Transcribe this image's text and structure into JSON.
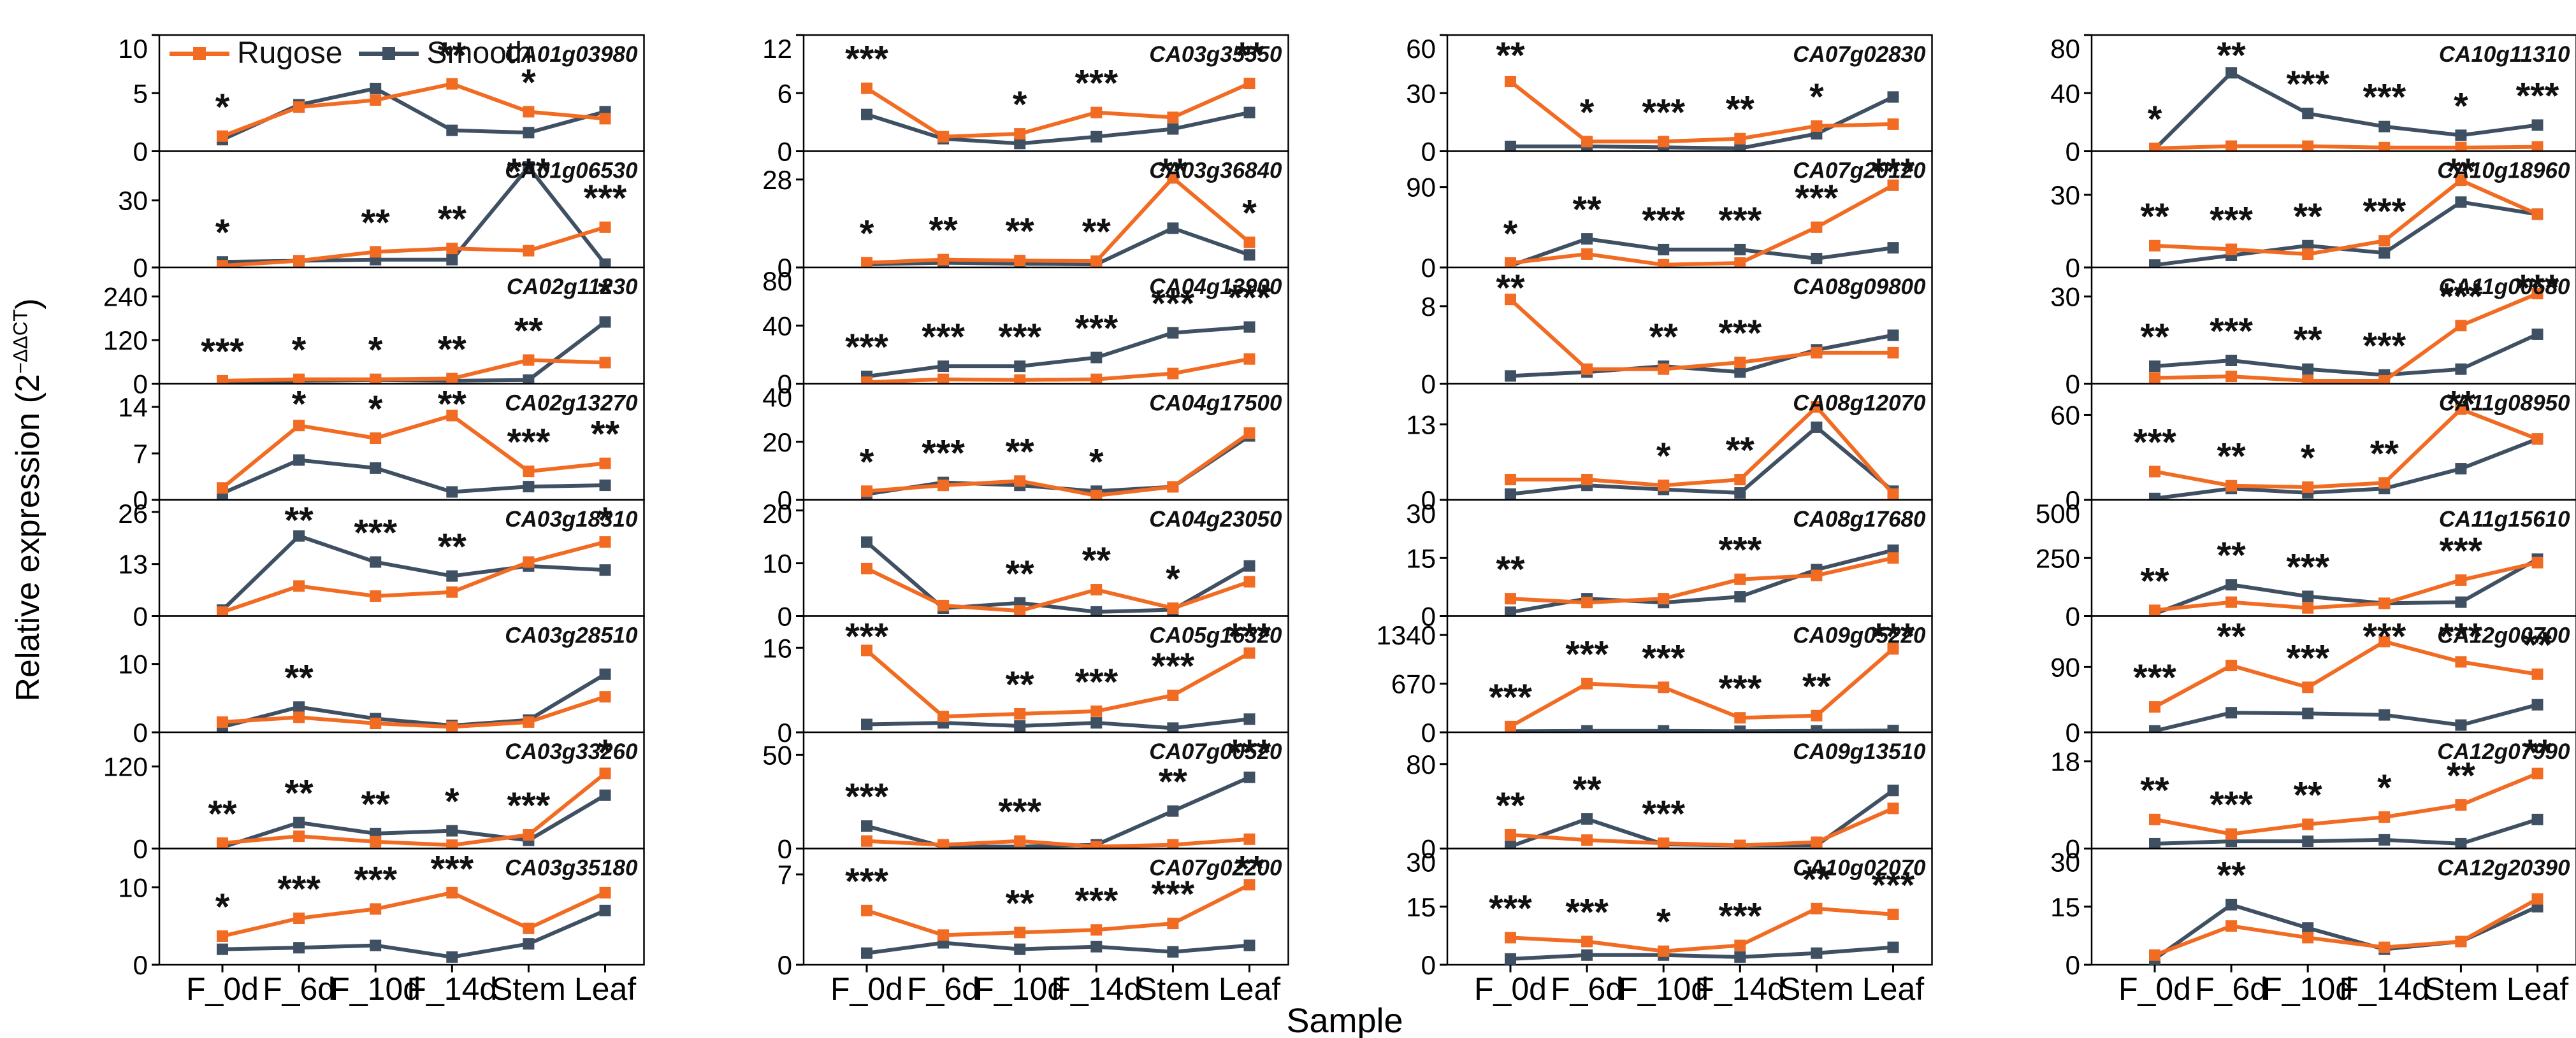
{
  "figure": {
    "y_axis_label_prefix": "Relative expression (2",
    "y_axis_label_sup": "−ΔΔCT",
    "y_axis_label_suffix": ")",
    "x_axis_label": "Sample",
    "legend": [
      {
        "label": "Rugose",
        "color": "#F16C22"
      },
      {
        "label": "Smooth",
        "color": "#3F5063"
      }
    ],
    "colors": {
      "rugose": "#F16C22",
      "smooth": "#3F5063"
    }
  },
  "chart_data": {
    "type": "line",
    "categories": [
      "F_0d",
      "F_6d",
      "F_10d",
      "F_14d",
      "Stem",
      "Leaf"
    ],
    "series_names": [
      "Rugose",
      "Smooth"
    ],
    "legend_position": "top-left-first-panel",
    "grid": false,
    "columns": [
      [
        {
          "gene": "CA01g03980",
          "yticks": [
            0,
            5,
            10
          ],
          "ymax": 10,
          "rugose": [
            1.3,
            3.8,
            4.4,
            5.8,
            3.4,
            2.8
          ],
          "smooth": [
            1.0,
            4.0,
            5.4,
            1.8,
            1.6,
            3.4
          ],
          "sig": [
            "*",
            "",
            "",
            "**",
            "*",
            ""
          ]
        },
        {
          "gene": "CA01g06530",
          "yticks": [
            0,
            30
          ],
          "ymax": 52,
          "rugose": [
            0.8,
            3,
            7,
            8.5,
            7.5,
            18
          ],
          "smooth": [
            2.5,
            3,
            3.5,
            3.5,
            45,
            1.5
          ],
          "sig": [
            "*",
            "",
            "**",
            "**",
            "***",
            "***"
          ]
        },
        {
          "gene": "CA02g11230",
          "yticks": [
            0,
            120,
            240
          ],
          "ymax": 320,
          "rugose": [
            8,
            12,
            12,
            14,
            65,
            58
          ],
          "smooth": [
            5,
            8,
            10,
            8,
            10,
            170
          ],
          "sig": [
            "***",
            "*",
            "*",
            "**",
            "**",
            "*"
          ]
        },
        {
          "gene": "CA02g13270",
          "yticks": [
            0,
            7,
            14
          ],
          "ymax": 17.5,
          "rugose": [
            1.8,
            11.2,
            9.3,
            12.7,
            4.3,
            5.5
          ],
          "smooth": [
            1.0,
            6.0,
            4.8,
            1.2,
            2.0,
            2.2
          ],
          "sig": [
            "",
            "*",
            "*",
            "**",
            "***",
            "**"
          ]
        },
        {
          "gene": "CA03g18310",
          "yticks": [
            0,
            13,
            26
          ],
          "ymax": 29,
          "rugose": [
            1.0,
            7.5,
            5.0,
            6.0,
            13.5,
            18.5
          ],
          "smooth": [
            1.5,
            20,
            13.5,
            10,
            12.5,
            11.5
          ],
          "sig": [
            "",
            "**",
            "***",
            "**",
            "",
            "*"
          ]
        },
        {
          "gene": "CA03g28510",
          "yticks": [
            0,
            10
          ],
          "ymax": 17,
          "rugose": [
            1.5,
            2.2,
            1.3,
            0.8,
            1.5,
            5.2
          ],
          "smooth": [
            0.8,
            3.7,
            2.0,
            1.0,
            1.8,
            8.5
          ],
          "sig": [
            "",
            "**",
            "",
            "",
            "",
            ""
          ]
        },
        {
          "gene": "CA03g33260",
          "yticks": [
            0,
            120
          ],
          "ymax": 170,
          "rugose": [
            8,
            18,
            10,
            5,
            20,
            110
          ],
          "smooth": [
            2,
            38,
            22,
            26,
            12,
            78
          ],
          "sig": [
            "**",
            "**",
            "**",
            "*",
            "***",
            "*"
          ]
        },
        {
          "gene": "CA03g35180",
          "yticks": [
            0,
            10
          ],
          "ymax": 15,
          "rugose": [
            3.7,
            6.0,
            7.2,
            9.3,
            4.7,
            9.3
          ],
          "smooth": [
            2.0,
            2.2,
            2.5,
            1.0,
            2.7,
            7.0
          ],
          "sig": [
            "*",
            "***",
            "***",
            "***",
            "",
            ""
          ]
        }
      ],
      [
        {
          "gene": "CA03g35550",
          "yticks": [
            0,
            6,
            12
          ],
          "ymax": 12,
          "rugose": [
            6.5,
            1.5,
            1.8,
            4.0,
            3.5,
            7.0
          ],
          "smooth": [
            3.8,
            1.3,
            0.8,
            1.5,
            2.3,
            4.0
          ],
          "sig": [
            "***",
            "",
            "*",
            "***",
            "",
            "**"
          ]
        },
        {
          "gene": "CA03g36840",
          "yticks": [
            0,
            28
          ],
          "ymax": 37,
          "rugose": [
            1.5,
            2.5,
            2.2,
            2.0,
            28.5,
            8.0
          ],
          "smooth": [
            1.0,
            1.5,
            1.2,
            1.0,
            12.5,
            4.0
          ],
          "sig": [
            "*",
            "**",
            "**",
            "**",
            "**",
            "*"
          ]
        },
        {
          "gene": "CA04g13900",
          "yticks": [
            0,
            40,
            80
          ],
          "ymax": 80,
          "rugose": [
            1,
            3,
            2.5,
            3,
            7,
            17
          ],
          "smooth": [
            5,
            12,
            12,
            18,
            35,
            39
          ],
          "sig": [
            "***",
            "***",
            "***",
            "***",
            "***",
            "***"
          ]
        },
        {
          "gene": "CA04g17500",
          "yticks": [
            0,
            20,
            40
          ],
          "ymax": 40,
          "rugose": [
            3,
            5,
            6.5,
            1.5,
            4.5,
            23
          ],
          "smooth": [
            2,
            6,
            5,
            3,
            4.5,
            22
          ],
          "sig": [
            "*",
            "***",
            "**",
            "*",
            "",
            ""
          ]
        },
        {
          "gene": "CA04g23050",
          "yticks": [
            0,
            10,
            20
          ],
          "ymax": 22,
          "rugose": [
            9,
            2,
            1,
            5,
            1.5,
            6.5
          ],
          "smooth": [
            14,
            1.5,
            2.5,
            0.8,
            1.2,
            9.5
          ],
          "sig": [
            "",
            "",
            "**",
            "**",
            "*",
            ""
          ]
        },
        {
          "gene": "CA05g16320",
          "yticks": [
            0,
            16
          ],
          "ymax": 22,
          "rugose": [
            15.5,
            3,
            3.5,
            4,
            7,
            15
          ],
          "smooth": [
            1.5,
            1.8,
            1.2,
            1.8,
            0.8,
            2.5
          ],
          "sig": [
            "***",
            "",
            "**",
            "***",
            "***",
            "***"
          ]
        },
        {
          "gene": "CA07g00520",
          "yticks": [
            0,
            50
          ],
          "ymax": 62,
          "rugose": [
            4,
            2,
            4,
            1,
            2,
            5
          ],
          "smooth": [
            12,
            1,
            1,
            2,
            20,
            38
          ],
          "sig": [
            "***",
            "",
            "***",
            "",
            "**",
            "***"
          ]
        },
        {
          "gene": "CA07g02200",
          "yticks": [
            0,
            7
          ],
          "ymax": 9,
          "rugose": [
            4.2,
            2.3,
            2.5,
            2.7,
            3.2,
            6.2
          ],
          "smooth": [
            0.9,
            1.7,
            1.2,
            1.4,
            1.0,
            1.5
          ],
          "sig": [
            "***",
            "",
            "**",
            "***",
            "***",
            "**"
          ]
        }
      ],
      [
        {
          "gene": "CA07g02830",
          "yticks": [
            0,
            30,
            60
          ],
          "ymax": 60,
          "rugose": [
            36,
            5,
            5,
            6.5,
            13,
            14
          ],
          "smooth": [
            2.5,
            2.5,
            2,
            1.5,
            9,
            28
          ],
          "sig": [
            "**",
            "*",
            "***",
            "**",
            "*",
            ""
          ]
        },
        {
          "gene": "CA07g20120",
          "yticks": [
            0,
            90
          ],
          "ymax": 130,
          "rugose": [
            5,
            15,
            3,
            5,
            45,
            92
          ],
          "smooth": [
            2,
            32,
            20,
            20,
            10,
            22
          ],
          "sig": [
            "*",
            "**",
            "***",
            "***",
            "***",
            "***"
          ]
        },
        {
          "gene": "CA08g09800",
          "yticks": [
            0,
            8
          ],
          "ymax": 12,
          "rugose": [
            8.7,
            1.5,
            1.5,
            2.2,
            3.2,
            3.2
          ],
          "smooth": [
            0.8,
            1.2,
            1.8,
            1.2,
            3.5,
            5.0
          ],
          "sig": [
            "**",
            "",
            "**",
            "***",
            "",
            ""
          ]
        },
        {
          "gene": "CA08g12070",
          "yticks": [
            0,
            13
          ],
          "ymax": 20,
          "rugose": [
            3.5,
            3.5,
            2.5,
            3.5,
            16,
            1.0
          ],
          "smooth": [
            1.0,
            2.5,
            1.8,
            1.2,
            12.5,
            1.5
          ],
          "sig": [
            "",
            "",
            "*",
            "**",
            "",
            ""
          ]
        },
        {
          "gene": "CA08g17680",
          "yticks": [
            0,
            15,
            30
          ],
          "ymax": 30,
          "rugose": [
            4.5,
            3.5,
            4.5,
            9.5,
            10.5,
            15
          ],
          "smooth": [
            1.0,
            4.5,
            3.5,
            5,
            12,
            17
          ],
          "sig": [
            "**",
            "",
            "",
            "***",
            "",
            ""
          ]
        },
        {
          "gene": "CA09g05220",
          "yticks": [
            0,
            670,
            1340
          ],
          "ymax": 1600,
          "rugose": [
            80,
            670,
            620,
            200,
            230,
            1150
          ],
          "smooth": [
            15,
            20,
            20,
            15,
            20,
            25
          ],
          "sig": [
            "***",
            "***",
            "***",
            "***",
            "**",
            "***"
          ]
        },
        {
          "gene": "CA09g13510",
          "yticks": [
            0,
            80
          ],
          "ymax": 110,
          "rugose": [
            13,
            8,
            5,
            3,
            6,
            38
          ],
          "smooth": [
            2,
            28,
            4,
            3,
            3,
            55
          ],
          "sig": [
            "**",
            "**",
            "***",
            "",
            "",
            ""
          ]
        },
        {
          "gene": "CA10g02070",
          "yticks": [
            0,
            15,
            30
          ],
          "ymax": 30,
          "rugose": [
            7,
            6,
            3.5,
            5,
            14.5,
            13
          ],
          "smooth": [
            1.5,
            2.5,
            2.5,
            2,
            3,
            4.5
          ],
          "sig": [
            "***",
            "***",
            "*",
            "***",
            "**",
            "***"
          ]
        }
      ],
      [
        {
          "gene": "CA10g11310",
          "yticks": [
            0,
            40,
            80
          ],
          "ymax": 80,
          "rugose": [
            2,
            3.5,
            3.5,
            2.5,
            2.5,
            3
          ],
          "smooth": [
            1.5,
            54,
            26,
            17,
            11,
            18
          ],
          "sig": [
            "*",
            "**",
            "***",
            "***",
            "*",
            "***"
          ]
        },
        {
          "gene": "CA10g18960",
          "yticks": [
            0,
            30
          ],
          "ymax": 48,
          "rugose": [
            9,
            7.5,
            5.5,
            11,
            36,
            22
          ],
          "smooth": [
            1,
            5,
            9,
            6,
            27,
            22
          ],
          "sig": [
            "**",
            "***",
            "**",
            "***",
            "**",
            ""
          ]
        },
        {
          "gene": "CA11g00680",
          "yticks": [
            0,
            30
          ],
          "ymax": 40,
          "rugose": [
            2,
            2.5,
            1,
            1,
            20,
            31
          ],
          "smooth": [
            6,
            8,
            5,
            3,
            5,
            17
          ],
          "sig": [
            "**",
            "***",
            "**",
            "***",
            "***",
            "***"
          ]
        },
        {
          "gene": "CA11g08950",
          "yticks": [
            0,
            60
          ],
          "ymax": 82,
          "rugose": [
            20,
            10,
            9,
            12,
            64,
            43
          ],
          "smooth": [
            1,
            8,
            5,
            8,
            22,
            43
          ],
          "sig": [
            "***",
            "**",
            "*",
            "**",
            "**",
            ""
          ]
        },
        {
          "gene": "CA11g15610",
          "yticks": [
            0,
            250,
            500
          ],
          "ymax": 500,
          "rugose": [
            25,
            60,
            35,
            55,
            155,
            230
          ],
          "smooth": [
            10,
            135,
            85,
            55,
            60,
            245
          ],
          "sig": [
            "**",
            "**",
            "***",
            "",
            "***",
            ""
          ]
        },
        {
          "gene": "CA12g00700",
          "yticks": [
            0,
            90
          ],
          "ymax": 160,
          "rugose": [
            35,
            92,
            62,
            125,
            97,
            80
          ],
          "smooth": [
            2,
            27,
            26,
            24,
            10,
            38
          ],
          "sig": [
            "***",
            "**",
            "***",
            "***",
            "***",
            "**"
          ]
        },
        {
          "gene": "CA12g07990",
          "yticks": [
            0,
            18
          ],
          "ymax": 24,
          "rugose": [
            6,
            3,
            5,
            6.5,
            9,
            15.5
          ],
          "smooth": [
            1,
            1.5,
            1.5,
            1.8,
            1,
            6
          ],
          "sig": [
            "**",
            "***",
            "**",
            "*",
            "**",
            "**"
          ]
        },
        {
          "gene": "CA12g20390",
          "yticks": [
            0,
            15,
            30
          ],
          "ymax": 30,
          "rugose": [
            2.5,
            10,
            7,
            4.5,
            6,
            17
          ],
          "smooth": [
            1.5,
            15.5,
            9.5,
            4,
            6,
            15
          ],
          "sig": [
            "",
            "**",
            "",
            "",
            "",
            ""
          ]
        }
      ]
    ]
  }
}
